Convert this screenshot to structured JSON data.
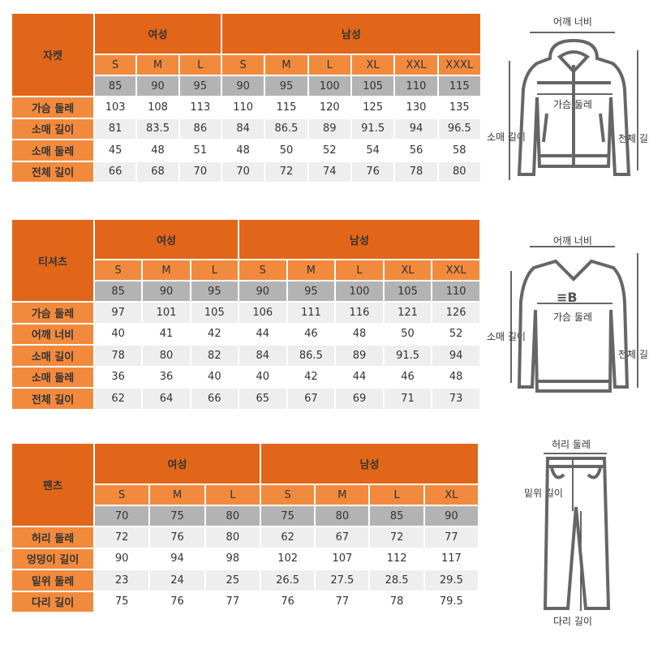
{
  "colors": {
    "header": "#e2661a",
    "size_row": "#f28a3e",
    "numeric_row": "#b3b3b3",
    "row_label": "#f28a3e",
    "alt_row": "#eeeeee"
  },
  "tables": [
    {
      "category": "자켓",
      "women_label": "여성",
      "men_label": "남성",
      "women_sizes": [
        "S",
        "M",
        "L"
      ],
      "men_sizes": [
        "S",
        "M",
        "L",
        "XL",
        "XXL",
        "XXXL"
      ],
      "size_numbers": [
        "85",
        "90",
        "95",
        "90",
        "95",
        "100",
        "105",
        "110",
        "115"
      ],
      "rows": [
        {
          "label": "가슴 둘레",
          "values": [
            "103",
            "108",
            "113",
            "110",
            "115",
            "120",
            "125",
            "130",
            "135"
          ]
        },
        {
          "label": "소매 길이",
          "values": [
            "81",
            "83.5",
            "86",
            "84",
            "86.5",
            "89",
            "91.5",
            "94",
            "96.5"
          ]
        },
        {
          "label": "소매 둘레",
          "values": [
            "45",
            "48",
            "51",
            "48",
            "50",
            "52",
            "54",
            "56",
            "58"
          ]
        },
        {
          "label": "전체 길이",
          "values": [
            "66",
            "68",
            "70",
            "70",
            "72",
            "74",
            "76",
            "78",
            "80"
          ]
        }
      ]
    },
    {
      "category": "티셔츠",
      "women_label": "여성",
      "men_label": "남성",
      "women_sizes": [
        "S",
        "M",
        "L"
      ],
      "men_sizes": [
        "S",
        "M",
        "L",
        "XL",
        "XXL"
      ],
      "size_numbers": [
        "85",
        "90",
        "95",
        "90",
        "95",
        "100",
        "105",
        "110"
      ],
      "rows": [
        {
          "label": "가슴 둘레",
          "values": [
            "97",
            "101",
            "105",
            "106",
            "111",
            "116",
            "121",
            "126"
          ]
        },
        {
          "label": "어깨 너비",
          "values": [
            "40",
            "41",
            "42",
            "44",
            "46",
            "48",
            "50",
            "52"
          ]
        },
        {
          "label": "소매 길이",
          "values": [
            "78",
            "80",
            "82",
            "84",
            "86.5",
            "89",
            "91.5",
            "94"
          ]
        },
        {
          "label": "소매 둘레",
          "values": [
            "36",
            "36",
            "40",
            "40",
            "42",
            "44",
            "46",
            "48"
          ]
        },
        {
          "label": "전체 길이",
          "values": [
            "62",
            "64",
            "66",
            "65",
            "67",
            "69",
            "71",
            "73"
          ]
        }
      ]
    },
    {
      "category": "팬츠",
      "women_label": "여성",
      "men_label": "남성",
      "women_sizes": [
        "S",
        "M",
        "L"
      ],
      "men_sizes": [
        "S",
        "M",
        "L",
        "XL"
      ],
      "size_numbers": [
        "70",
        "75",
        "80",
        "75",
        "80",
        "85",
        "90"
      ],
      "rows": [
        {
          "label": "허리 둘레",
          "values": [
            "72",
            "76",
            "80",
            "62",
            "67",
            "72",
            "77"
          ]
        },
        {
          "label": "엉덩이 길이",
          "values": [
            "90",
            "94",
            "98",
            "102",
            "107",
            "112",
            "117"
          ]
        },
        {
          "label": "밑위 둘레",
          "values": [
            "23",
            "24",
            "25",
            "26.5",
            "27.5",
            "28.5",
            "29.5"
          ]
        },
        {
          "label": "다리 길이",
          "values": [
            "75",
            "76",
            "77",
            "76",
            "77",
            "78",
            "79.5"
          ]
        }
      ]
    }
  ],
  "illustrations": {
    "jacket": {
      "shoulder": "어깨 너비",
      "chest": "가슴 둘레",
      "sleeve": "소매 길이",
      "length": "전체 길이"
    },
    "tshirt": {
      "shoulder": "어깨 너비",
      "chest": "가슴 둘레",
      "sleeve": "소매 길이",
      "length": "전체 길이"
    },
    "pants": {
      "waist": "허리 둘레",
      "rise": "밑위 길이",
      "leg": "다리 길이"
    }
  }
}
